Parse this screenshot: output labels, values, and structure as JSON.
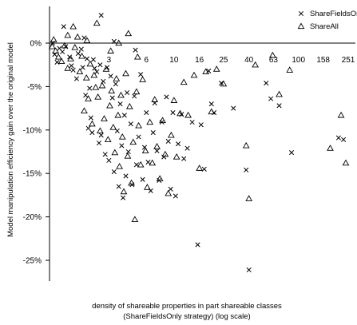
{
  "chart_data": {
    "type": "scatter",
    "title": "",
    "xlabel": [
      "density of shareable properties in part shareable classes",
      "(ShareFieldsOnly strategy)  (log scale)"
    ],
    "ylabel": "Model manipulation efficiency gain over the original model",
    "x_scale": "log",
    "x_tick_values": [
      1,
      3,
      6,
      10,
      16,
      25,
      40,
      63,
      100,
      158,
      251
    ],
    "x_tick_labels": [
      "",
      "3",
      "6",
      "10",
      "16",
      "25",
      "40",
      "63",
      "100",
      "158",
      "251"
    ],
    "xlim": [
      1,
      251
    ],
    "y_tick_values": [
      0,
      -5,
      -10,
      -15,
      -20,
      -25
    ],
    "y_tick_labels": [
      "0%",
      "-5%",
      "-10%",
      "-15%",
      "-20%",
      "-25%"
    ],
    "ylim": [
      -27.5,
      4.2
    ],
    "reference_line_y": 0,
    "grid": false,
    "legend_position": "top-right",
    "series": [
      {
        "name": "ShareFieldsOnly",
        "marker": "x",
        "points": [
          [
            1.06,
            0.0
          ],
          [
            1.1,
            -1.3
          ],
          [
            1.15,
            -2.2
          ],
          [
            1.2,
            -0.6
          ],
          [
            1.27,
            -1.0
          ],
          [
            1.35,
            -0.4
          ],
          [
            1.45,
            -1.6
          ],
          [
            1.5,
            -2.6
          ],
          [
            1.55,
            -3.1
          ],
          [
            1.65,
            -4.1
          ],
          [
            1.7,
            -1.2
          ],
          [
            1.8,
            -0.7
          ],
          [
            1.85,
            -2.8
          ],
          [
            1.95,
            -6.0
          ],
          [
            2.0,
            -1.8
          ],
          [
            2.1,
            -5.2
          ],
          [
            2.2,
            -10.3
          ],
          [
            2.25,
            -1.9
          ],
          [
            2.3,
            -2.9
          ],
          [
            2.4,
            -3.3
          ],
          [
            2.5,
            -11.5
          ],
          [
            2.55,
            -2.5
          ],
          [
            2.6,
            -10.6
          ],
          [
            2.7,
            -4.4
          ],
          [
            2.8,
            -12.8
          ],
          [
            2.9,
            -2.8
          ],
          [
            3.0,
            -13.5
          ],
          [
            3.1,
            -3.8
          ],
          [
            3.2,
            -6.3
          ],
          [
            3.3,
            -14.8
          ],
          [
            3.4,
            -4.7
          ],
          [
            3.5,
            -10.1
          ],
          [
            3.6,
            -16.5
          ],
          [
            3.7,
            -7.0
          ],
          [
            3.8,
            -11.8
          ],
          [
            3.9,
            -17.8
          ],
          [
            4.0,
            -8.3
          ],
          [
            4.1,
            -15.3
          ],
          [
            4.2,
            -5.7
          ],
          [
            4.3,
            -12.5
          ],
          [
            4.5,
            -9.3
          ],
          [
            4.6,
            -16.3
          ],
          [
            4.8,
            -6.1
          ],
          [
            5.0,
            -14.0
          ],
          [
            5.2,
            -10.8
          ],
          [
            5.4,
            -3.6
          ],
          [
            5.6,
            -15.7
          ],
          [
            5.8,
            -12.0
          ],
          [
            6.0,
            -8.0
          ],
          [
            6.2,
            -13.7
          ],
          [
            6.5,
            -17.0
          ],
          [
            6.8,
            -10.3
          ],
          [
            7.0,
            -6.9
          ],
          [
            7.3,
            -12.4
          ],
          [
            7.6,
            -15.8
          ],
          [
            8.0,
            -9.1
          ],
          [
            8.3,
            -13.1
          ],
          [
            8.7,
            -6.2
          ],
          [
            9.0,
            -11.3
          ],
          [
            9.4,
            -16.8
          ],
          [
            9.8,
            -8.0
          ],
          [
            10.3,
            -17.6
          ],
          [
            10.8,
            -11.6
          ],
          [
            11.5,
            -8.2
          ],
          [
            12.0,
            -13.3
          ],
          [
            12.8,
            -12.1
          ],
          [
            14.0,
            -9.1
          ],
          [
            15.5,
            -23.2
          ],
          [
            16.5,
            -9.4
          ],
          [
            17.5,
            -14.5
          ],
          [
            19.0,
            -3.2
          ],
          [
            20.0,
            -7.0
          ],
          [
            21.0,
            -8.0
          ],
          [
            24.0,
            -4.6
          ],
          [
            30.0,
            -7.5
          ],
          [
            38.0,
            -14.6
          ],
          [
            40.0,
            -26.1
          ],
          [
            55.0,
            -4.6
          ],
          [
            60.0,
            -6.4
          ],
          [
            70.0,
            -7.2
          ],
          [
            88.0,
            -12.6
          ],
          [
            210.0,
            -10.9
          ],
          [
            230.0,
            -11.1
          ],
          [
            1.3,
            1.9
          ],
          [
            1.9,
            0.6
          ],
          [
            2.6,
            3.2
          ],
          [
            3.3,
            0.2
          ],
          [
            4.9,
            -0.8
          ],
          [
            2.05,
            -9.8
          ],
          [
            2.15,
            -8.6
          ]
        ]
      },
      {
        "name": "ShareAll",
        "marker": "triangle",
        "points": [
          [
            1.05,
            -0.4
          ],
          [
            1.08,
            0.4
          ],
          [
            1.12,
            -0.9
          ],
          [
            1.18,
            -1.6
          ],
          [
            1.25,
            -2.1
          ],
          [
            1.32,
            -0.3
          ],
          [
            1.4,
            -2.9
          ],
          [
            1.48,
            -1.8
          ],
          [
            1.55,
            1.9
          ],
          [
            1.6,
            -0.5
          ],
          [
            1.68,
            0.7
          ],
          [
            1.75,
            -3.3
          ],
          [
            1.82,
            -1.5
          ],
          [
            1.9,
            -7.8
          ],
          [
            1.98,
            -4.0
          ],
          [
            2.05,
            -6.4
          ],
          [
            2.12,
            -2.4
          ],
          [
            2.2,
            -9.3
          ],
          [
            2.28,
            -3.7
          ],
          [
            2.35,
            -5.1
          ],
          [
            2.45,
            -6.2
          ],
          [
            2.55,
            -10.1
          ],
          [
            2.65,
            -4.9
          ],
          [
            2.75,
            -8.7
          ],
          [
            2.85,
            -3.0
          ],
          [
            2.95,
            -11.1
          ],
          [
            3.05,
            -7.2
          ],
          [
            3.15,
            -5.5
          ],
          [
            3.25,
            -9.7
          ],
          [
            3.35,
            -12.6
          ],
          [
            3.45,
            -4.1
          ],
          [
            3.55,
            -8.3
          ],
          [
            3.65,
            -14.2
          ],
          [
            3.75,
            -6.0
          ],
          [
            3.85,
            -10.8
          ],
          [
            3.95,
            -17.1
          ],
          [
            4.1,
            -3.5
          ],
          [
            4.25,
            -13.0
          ],
          [
            4.4,
            -7.3
          ],
          [
            4.55,
            -16.1
          ],
          [
            4.7,
            -11.4
          ],
          [
            4.85,
            -20.3
          ],
          [
            5.0,
            -5.6
          ],
          [
            5.2,
            -9.5
          ],
          [
            5.4,
            -14.0
          ],
          [
            5.6,
            -4.2
          ],
          [
            5.9,
            -12.4
          ],
          [
            6.1,
            -16.6
          ],
          [
            6.4,
            -9.1
          ],
          [
            6.7,
            -13.8
          ],
          [
            7.0,
            -6.5
          ],
          [
            7.3,
            -11.9
          ],
          [
            7.7,
            -15.6
          ],
          [
            8.1,
            -8.9
          ],
          [
            8.5,
            -12.8
          ],
          [
            9.0,
            -17.3
          ],
          [
            9.5,
            -10.6
          ],
          [
            10.0,
            -6.6
          ],
          [
            10.5,
            -13.1
          ],
          [
            11.2,
            -8.1
          ],
          [
            12.0,
            -4.5
          ],
          [
            13.0,
            -8.3
          ],
          [
            14.5,
            -3.7
          ],
          [
            16.0,
            -14.4
          ],
          [
            18.0,
            -3.3
          ],
          [
            20.0,
            -7.9
          ],
          [
            22.0,
            -3.0
          ],
          [
            25.0,
            -4.7
          ],
          [
            38.0,
            -11.8
          ],
          [
            40.0,
            -17.9
          ],
          [
            45.0,
            -2.5
          ],
          [
            62.0,
            -1.4
          ],
          [
            70.0,
            -5.9
          ],
          [
            85.0,
            -3.1
          ],
          [
            180.0,
            -12.1
          ],
          [
            220.0,
            -8.3
          ],
          [
            240.0,
            -13.8
          ],
          [
            1.4,
            0.9
          ],
          [
            2.0,
            0.3
          ],
          [
            2.4,
            2.3
          ],
          [
            3.1,
            -0.9
          ],
          [
            3.6,
            0.0
          ],
          [
            4.3,
            1.1
          ],
          [
            5.1,
            -1.6
          ]
        ]
      }
    ]
  }
}
